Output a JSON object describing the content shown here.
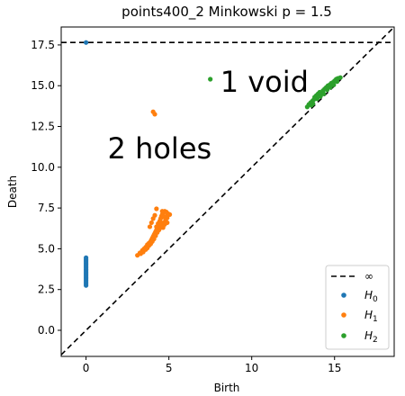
{
  "chart_data": {
    "type": "scatter",
    "title": "points400_2 Minkowski p = 1.5",
    "xlabel": "Birth",
    "ylabel": "Death",
    "xlim": [
      -1.5,
      18.6
    ],
    "ylim": [
      -1.6,
      18.6
    ],
    "xticks": [
      0,
      5,
      10,
      15
    ],
    "xtick_labels": [
      "0",
      "5",
      "10",
      "15"
    ],
    "yticks": [
      0.0,
      2.5,
      5.0,
      7.5,
      10.0,
      12.5,
      15.0,
      17.5
    ],
    "ytick_labels": [
      "0.0",
      "2.5",
      "5.0",
      "7.5",
      "10.0",
      "12.5",
      "15.0",
      "17.5"
    ],
    "infinity_level": 17.65,
    "grid": false,
    "legend_position": "lower-right",
    "legend": [
      {
        "label": "∞",
        "kind": "line",
        "color": "#000000"
      },
      {
        "label": "H",
        "sub": "0",
        "kind": "point",
        "color": "#1f77b4"
      },
      {
        "label": "H",
        "sub": "1",
        "kind": "point",
        "color": "#ff7f0e"
      },
      {
        "label": "H",
        "sub": "2",
        "kind": "point",
        "color": "#2ca02c"
      }
    ],
    "annotations": [
      {
        "text": "1 void",
        "x": 8.1,
        "y": 15.3
      },
      {
        "text": "2 holes",
        "x": 1.3,
        "y": 11.2
      }
    ],
    "series": [
      {
        "name": "H0",
        "color": "#1f77b4",
        "points": [
          [
            0,
            17.65
          ],
          [
            0,
            2.75
          ],
          [
            0,
            2.85
          ],
          [
            0,
            2.95
          ],
          [
            0,
            3.05
          ],
          [
            0,
            3.15
          ],
          [
            0,
            3.25
          ],
          [
            0,
            3.35
          ],
          [
            0,
            3.45
          ],
          [
            0,
            3.55
          ],
          [
            0,
            3.65
          ],
          [
            0,
            3.75
          ],
          [
            0,
            3.85
          ],
          [
            0,
            3.95
          ],
          [
            0,
            4.05
          ],
          [
            0,
            4.15
          ],
          [
            0,
            4.25
          ],
          [
            0,
            4.35
          ],
          [
            0,
            4.45
          ]
        ]
      },
      {
        "name": "H1",
        "color": "#ff7f0e",
        "points": [
          [
            4.05,
            13.4
          ],
          [
            4.15,
            13.25
          ],
          [
            3.1,
            4.6
          ],
          [
            3.25,
            4.75
          ],
          [
            3.4,
            4.9
          ],
          [
            3.5,
            5.0
          ],
          [
            3.6,
            5.1
          ],
          [
            3.7,
            5.25
          ],
          [
            3.8,
            5.35
          ],
          [
            3.9,
            5.45
          ],
          [
            3.95,
            5.55
          ],
          [
            4.0,
            5.65
          ],
          [
            4.05,
            5.75
          ],
          [
            4.1,
            5.85
          ],
          [
            4.15,
            5.95
          ],
          [
            4.2,
            6.05
          ],
          [
            4.25,
            6.15
          ],
          [
            4.3,
            6.25
          ],
          [
            4.35,
            6.4
          ],
          [
            4.4,
            6.55
          ],
          [
            4.45,
            6.7
          ],
          [
            4.5,
            6.85
          ],
          [
            4.55,
            7.0
          ],
          [
            4.6,
            7.1
          ],
          [
            4.65,
            7.2
          ],
          [
            4.75,
            7.3
          ],
          [
            4.85,
            7.25
          ],
          [
            4.95,
            7.15
          ],
          [
            5.05,
            7.1
          ],
          [
            4.9,
            6.9
          ],
          [
            4.8,
            6.75
          ],
          [
            4.7,
            6.6
          ],
          [
            4.6,
            6.45
          ],
          [
            4.5,
            6.3
          ],
          [
            4.4,
            6.15
          ],
          [
            4.3,
            6.0
          ],
          [
            4.2,
            5.8
          ],
          [
            4.1,
            5.6
          ],
          [
            4.0,
            5.45
          ],
          [
            3.9,
            5.3
          ],
          [
            3.8,
            5.2
          ],
          [
            3.7,
            5.05
          ],
          [
            3.6,
            4.95
          ],
          [
            3.45,
            4.8
          ],
          [
            3.3,
            4.7
          ],
          [
            4.25,
            7.45
          ],
          [
            4.15,
            7.05
          ],
          [
            4.05,
            6.85
          ],
          [
            3.95,
            6.6
          ],
          [
            3.85,
            6.35
          ],
          [
            4.7,
            6.95
          ],
          [
            4.55,
            6.6
          ],
          [
            4.45,
            6.45
          ],
          [
            4.35,
            6.55
          ],
          [
            4.25,
            6.35
          ],
          [
            4.6,
            7.3
          ],
          [
            4.85,
            7.0
          ],
          [
            4.9,
            6.6
          ],
          [
            4.75,
            6.5
          ],
          [
            4.65,
            6.3
          ]
        ]
      },
      {
        "name": "H2",
        "color": "#2ca02c",
        "points": [
          [
            7.5,
            15.4
          ],
          [
            13.35,
            13.7
          ],
          [
            13.45,
            13.85
          ],
          [
            13.55,
            13.95
          ],
          [
            13.65,
            14.05
          ],
          [
            13.75,
            14.15
          ],
          [
            13.8,
            14.3
          ],
          [
            13.9,
            14.4
          ],
          [
            14.0,
            14.5
          ],
          [
            14.1,
            14.6
          ],
          [
            14.2,
            14.55
          ],
          [
            14.3,
            14.7
          ],
          [
            14.4,
            14.8
          ],
          [
            14.5,
            14.9
          ],
          [
            14.6,
            15.0
          ],
          [
            14.7,
            15.05
          ],
          [
            14.8,
            15.15
          ],
          [
            14.9,
            15.2
          ],
          [
            15.0,
            15.3
          ],
          [
            15.1,
            15.4
          ],
          [
            15.2,
            15.45
          ],
          [
            15.35,
            15.5
          ],
          [
            13.6,
            13.8
          ],
          [
            13.7,
            13.9
          ],
          [
            13.95,
            14.2
          ],
          [
            14.15,
            14.35
          ],
          [
            14.35,
            14.5
          ],
          [
            14.55,
            14.75
          ],
          [
            14.75,
            14.9
          ],
          [
            14.95,
            15.05
          ],
          [
            15.15,
            15.25
          ]
        ]
      }
    ]
  }
}
